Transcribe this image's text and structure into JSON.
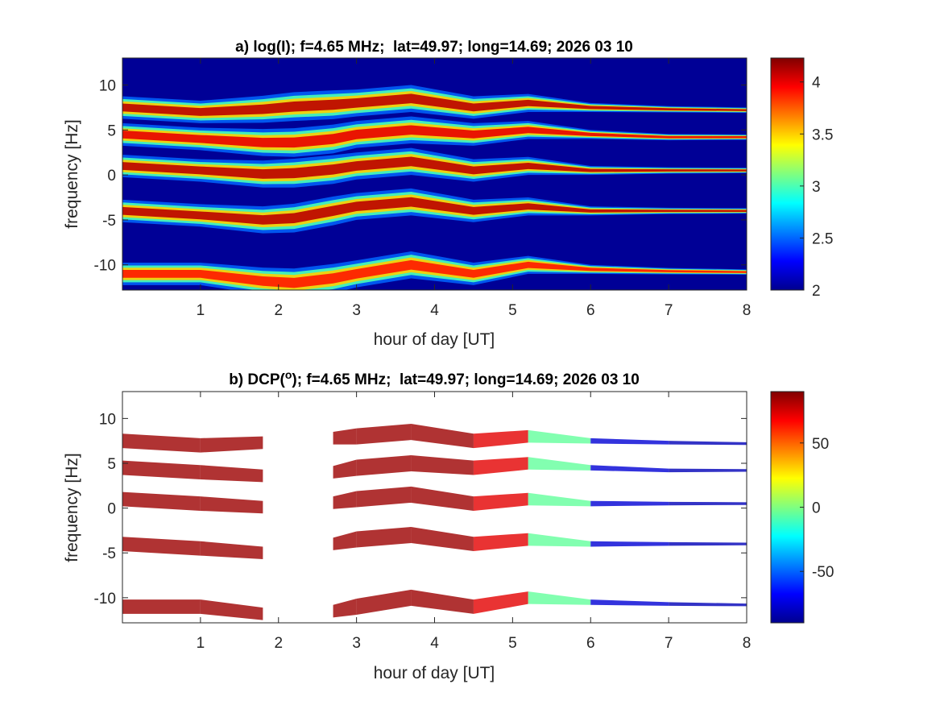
{
  "chart_data": [
    {
      "type": "heatmap",
      "title": "a) log(I); f=4.65 MHz;  lat=49.97; long=14.69; 2026 03 10",
      "xlabel": "hour of day [UT]",
      "ylabel": "frequency [Hz]",
      "xlim": [
        0,
        8
      ],
      "ylim": [
        -12.8,
        13
      ],
      "xticks": [
        "1",
        "2",
        "3",
        "4",
        "5",
        "6",
        "7",
        "8"
      ],
      "yticks": [
        "10",
        "5",
        "0",
        "-5",
        "-10"
      ],
      "colorbar": {
        "range": [
          2,
          4.23
        ],
        "ticks": [
          "4",
          "3.5",
          "3",
          "2.5",
          "2"
        ],
        "colormap": "jet"
      },
      "background_value": 2.05,
      "hours": [
        0,
        1,
        1.8,
        2.2,
        2.7,
        3,
        3.7,
        4.5,
        5.2,
        6,
        7,
        8
      ],
      "band_width_hz": [
        2.5,
        2.5,
        3,
        3.2,
        3.2,
        3,
        3,
        2.5,
        2,
        1,
        0.7,
        0.6
      ],
      "bands": [
        {
          "name": "band-7hz",
          "center_hz": [
            7.5,
            7,
            7.3,
            7.6,
            7.8,
            8,
            8.5,
            7.5,
            8,
            7.5,
            7.3,
            7.2
          ],
          "peak": 4.1
        },
        {
          "name": "band-4hz",
          "center_hz": [
            4.5,
            4,
            3.6,
            3.6,
            4,
            4.5,
            5,
            4.5,
            5,
            4.5,
            4.2,
            4.2
          ],
          "peak": 4.0
        },
        {
          "name": "band-1hz",
          "center_hz": [
            1,
            0.5,
            0.1,
            0.2,
            0.6,
            1,
            1.5,
            0.5,
            1,
            0.5,
            0.5,
            0.5
          ],
          "peak": 4.1
        },
        {
          "name": "band-minus4hz",
          "center_hz": [
            -4,
            -4.5,
            -5,
            -4.8,
            -4,
            -3.5,
            -3,
            -4,
            -3.5,
            -4,
            -4,
            -4
          ],
          "peak": 4.1
        },
        {
          "name": "band-minus11hz",
          "center_hz": [
            -11,
            -11,
            -11.8,
            -12,
            -11.5,
            -11,
            -10,
            -11,
            -10,
            -10.5,
            -10.7,
            -10.8
          ],
          "peak": 3.9
        }
      ]
    },
    {
      "type": "heatmap",
      "title_prefix": "b) DCP(",
      "title_sup": "o",
      "title_suffix": "); f=4.65 MHz;  lat=49.97; long=14.69; 2026 03 10",
      "xlabel": "hour of day [UT]",
      "ylabel": "frequency [Hz]",
      "xlim": [
        0,
        8
      ],
      "ylim": [
        -12.8,
        13
      ],
      "xticks": [
        "1",
        "2",
        "3",
        "4",
        "5",
        "6",
        "7",
        "8"
      ],
      "yticks": [
        "10",
        "5",
        "0",
        "-5",
        "-10"
      ],
      "colorbar": {
        "range": [
          -90,
          90
        ],
        "ticks": [
          "50",
          "0",
          "-50"
        ],
        "colormap": "jet"
      },
      "hours": [
        0,
        1,
        1.8,
        2.2,
        2.7,
        3,
        3.7,
        4.5,
        5.2,
        6,
        7,
        8
      ],
      "band_width_hz": [
        1.6,
        1.6,
        1.4,
        1.2,
        1.4,
        1.8,
        1.8,
        1.6,
        1.4,
        0.6,
        0.4,
        0.3
      ],
      "dcp_deg": [
        85,
        85,
        85,
        null,
        85,
        85,
        85,
        85,
        60,
        -70,
        -80,
        -80
      ],
      "bands": [
        "band-7hz",
        "band-4hz",
        "band-1hz",
        "band-minus4hz",
        "band-minus11hz"
      ]
    }
  ]
}
